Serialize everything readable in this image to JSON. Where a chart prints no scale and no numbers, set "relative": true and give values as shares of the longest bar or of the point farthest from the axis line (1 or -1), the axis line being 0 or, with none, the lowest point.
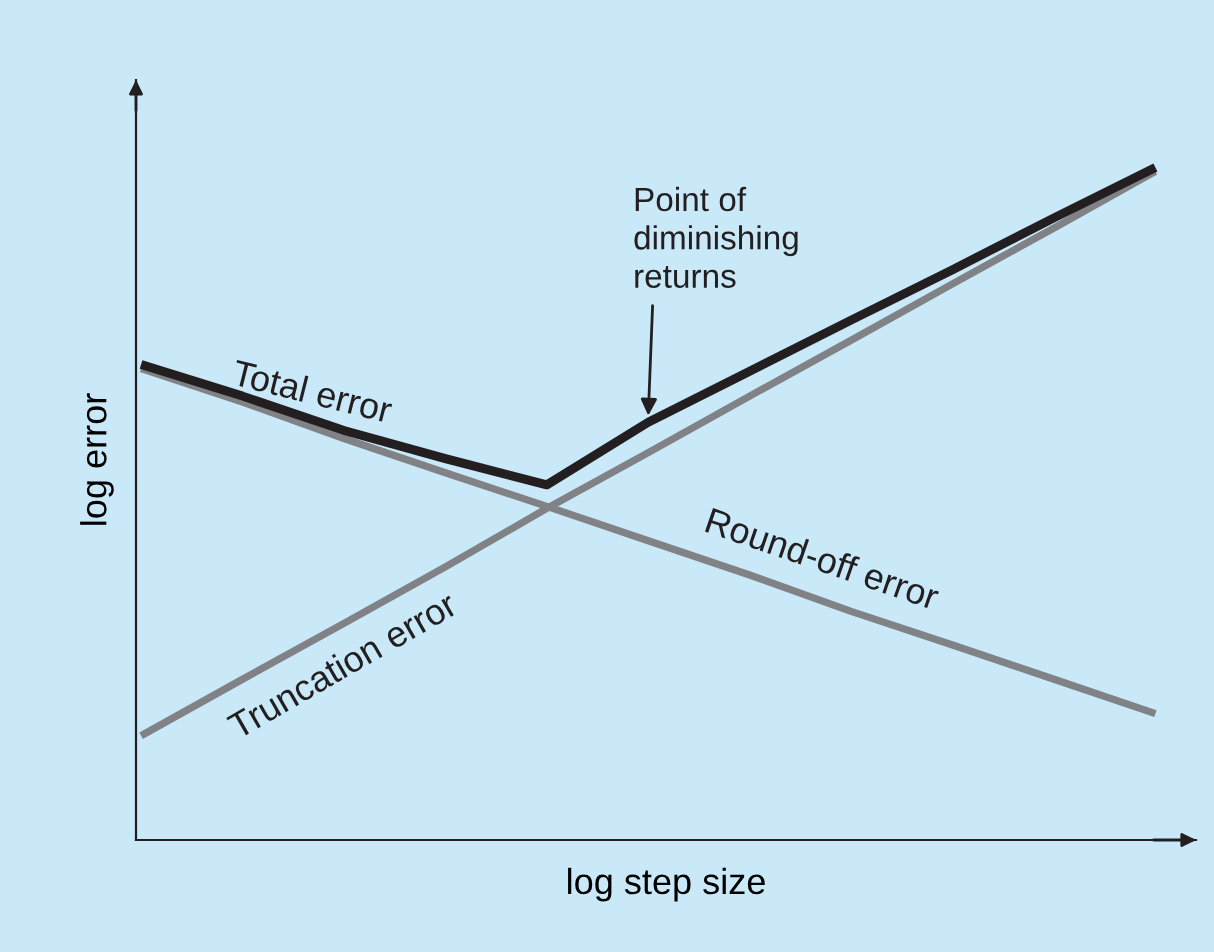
{
  "chart_data": {
    "type": "line",
    "relative": true,
    "xlabel": "log step size",
    "ylabel": "log error",
    "categories": [
      null,
      null,
      null,
      null,
      null,
      null,
      null,
      null,
      null,
      null,
      null
    ],
    "series": [
      {
        "name": "Total error",
        "color": "#231f20",
        "values": [
          0.707,
          0.66,
          0.609,
          0.567,
          0.528,
          0.621,
          0.697,
          0.773,
          0.848,
          0.925,
          1.0
        ]
      },
      {
        "name": "Truncation error",
        "color": "#808285",
        "values": [
          0.155,
          0.239,
          0.322,
          0.406,
          0.493,
          0.576,
          0.66,
          0.743,
          0.827,
          0.91,
          0.994
        ]
      },
      {
        "name": "Round-off error",
        "color": "#808285",
        "values": [
          0.701,
          0.651,
          0.597,
          0.546,
          0.496,
          0.445,
          0.394,
          0.34,
          0.29,
          0.239,
          0.188
        ]
      }
    ],
    "annotations": [
      "Point of diminishing returns"
    ],
    "marker": "none",
    "line_style": "solid"
  }
}
